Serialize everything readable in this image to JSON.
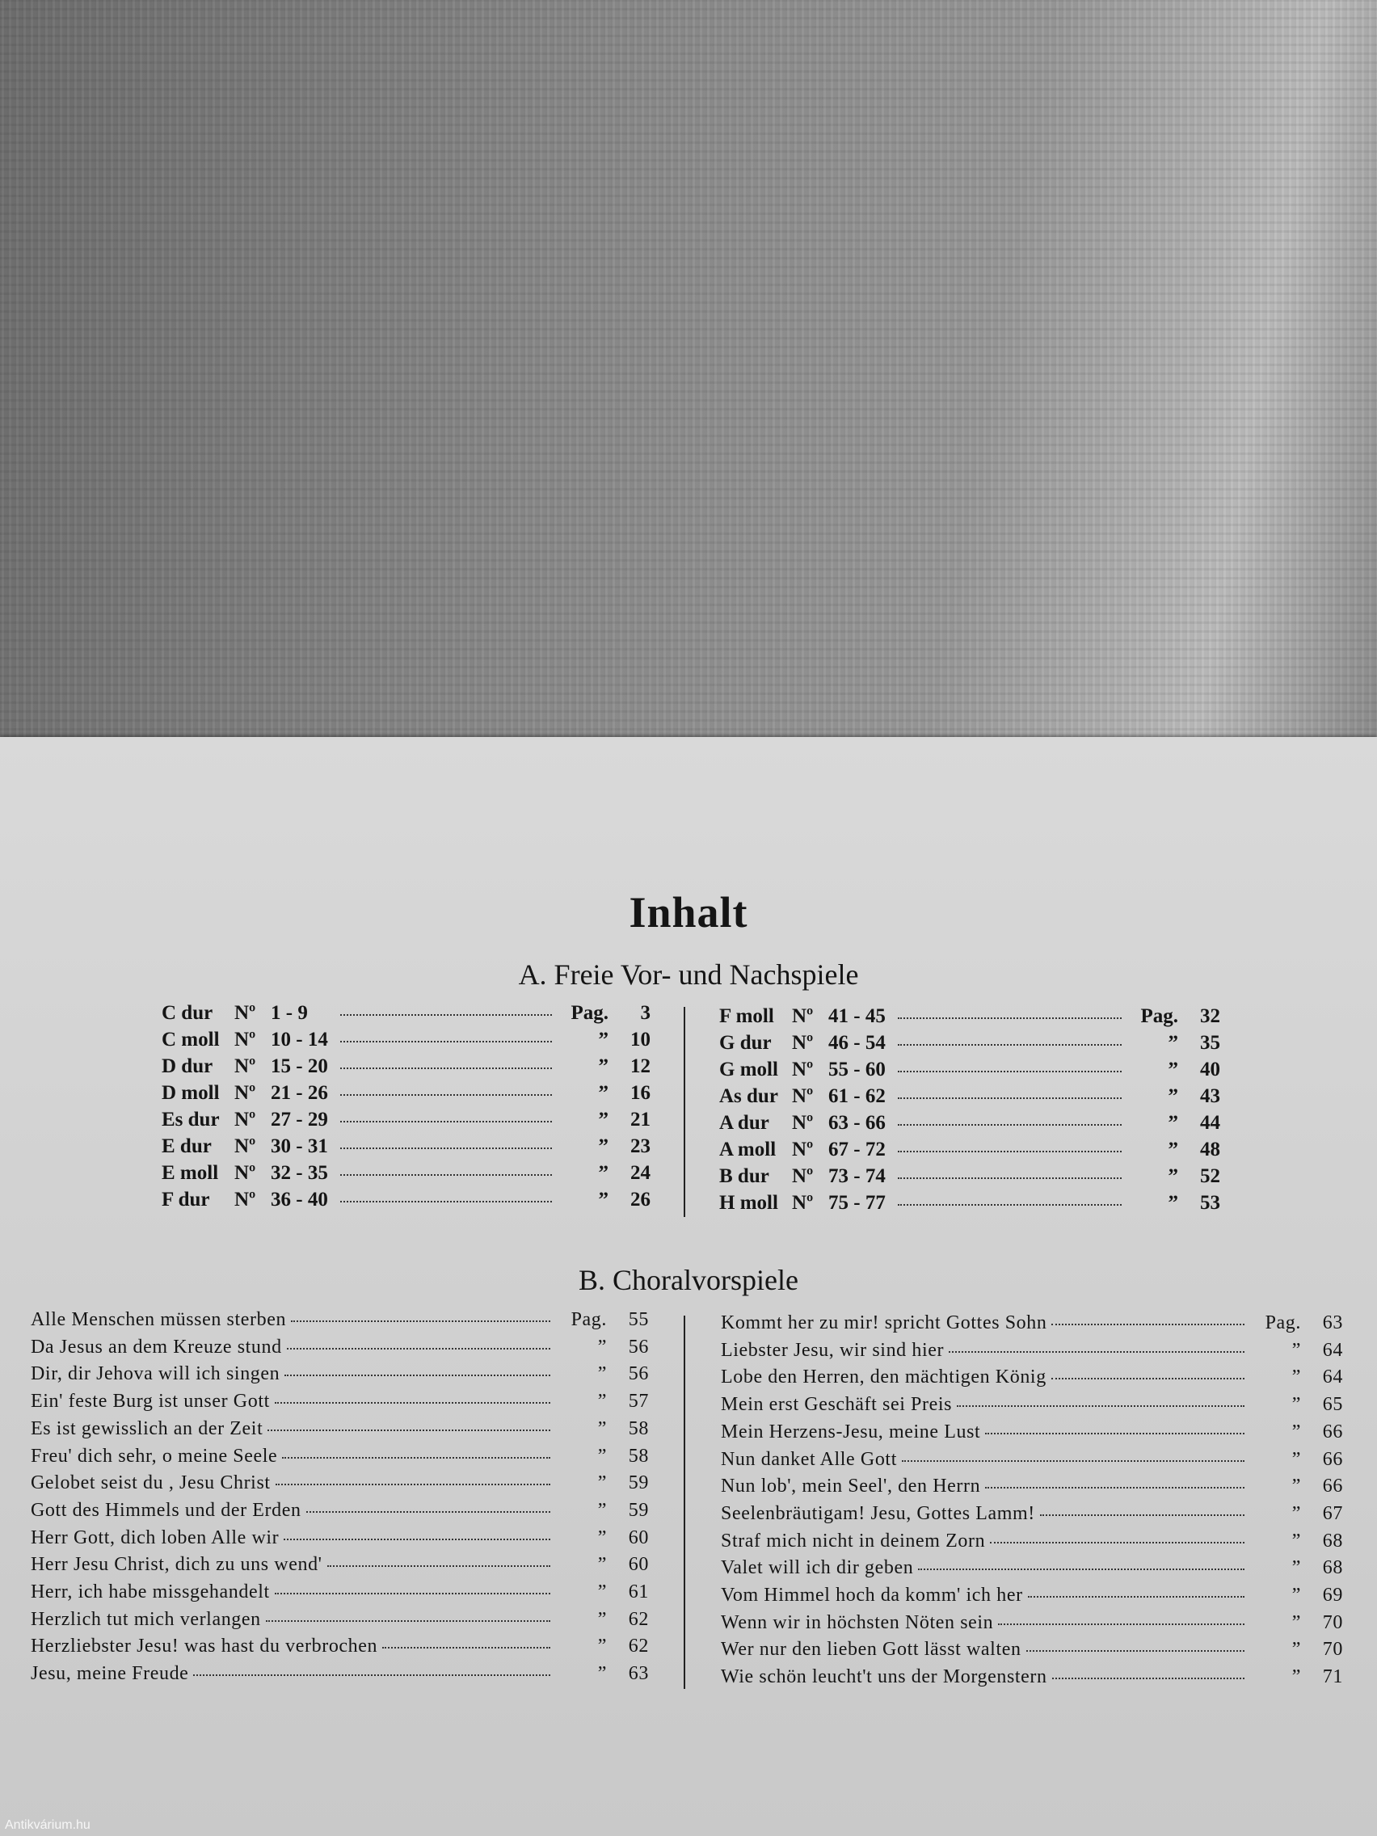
{
  "title": "Inhalt",
  "section_a": {
    "heading": "A. Freie Vor- und Nachspiele",
    "left": [
      {
        "key": "C dur",
        "no": "Nº",
        "range": "1 - 9",
        "pag": "Pag.",
        "page": "3"
      },
      {
        "key": "C moll",
        "no": "Nº",
        "range": "10 - 14",
        "pag": "”",
        "page": "10"
      },
      {
        "key": "D dur",
        "no": "Nº",
        "range": "15 - 20",
        "pag": "”",
        "page": "12"
      },
      {
        "key": "D moll",
        "no": "Nº",
        "range": "21 - 26",
        "pag": "”",
        "page": "16"
      },
      {
        "key": "Es dur",
        "no": "Nº",
        "range": "27 - 29",
        "pag": "”",
        "page": "21"
      },
      {
        "key": "E dur",
        "no": "Nº",
        "range": "30 - 31",
        "pag": "”",
        "page": "23"
      },
      {
        "key": "E moll",
        "no": "Nº",
        "range": "32 - 35",
        "pag": "”",
        "page": "24"
      },
      {
        "key": "F dur",
        "no": "Nº",
        "range": "36 - 40",
        "pag": "”",
        "page": "26"
      }
    ],
    "right": [
      {
        "key": "F moll",
        "no": "Nº",
        "range": "41 - 45",
        "pag": "Pag.",
        "page": "32"
      },
      {
        "key": "G dur",
        "no": "Nº",
        "range": "46 - 54",
        "pag": "”",
        "page": "35"
      },
      {
        "key": "G moll",
        "no": "Nº",
        "range": "55 - 60",
        "pag": "”",
        "page": "40"
      },
      {
        "key": "As dur",
        "no": "Nº",
        "range": "61 - 62",
        "pag": "”",
        "page": "43"
      },
      {
        "key": "A dur",
        "no": "Nº",
        "range": "63 - 66",
        "pag": "”",
        "page": "44"
      },
      {
        "key": "A moll",
        "no": "Nº",
        "range": "67 - 72",
        "pag": "”",
        "page": "48"
      },
      {
        "key": "B dur",
        "no": "Nº",
        "range": "73 - 74",
        "pag": "”",
        "page": "52"
      },
      {
        "key": "H moll",
        "no": "Nº",
        "range": "75 - 77",
        "pag": "”",
        "page": "53"
      }
    ]
  },
  "section_b": {
    "heading": "B. Choralvorspiele",
    "left": [
      {
        "title": "Alle Menschen müssen sterben",
        "pag": "Pag.",
        "page": "55"
      },
      {
        "title": "Da Jesus an dem Kreuze stund",
        "pag": "”",
        "page": "56"
      },
      {
        "title": "Dir, dir Jehova will ich singen",
        "pag": "”",
        "page": "56"
      },
      {
        "title": "Ein' feste Burg ist unser Gott",
        "pag": "”",
        "page": "57"
      },
      {
        "title": "Es ist gewisslich an der Zeit",
        "pag": "”",
        "page": "58"
      },
      {
        "title": "Freu' dich sehr, o meine Seele",
        "pag": "”",
        "page": "58"
      },
      {
        "title": "Gelobet seist du , Jesu Christ",
        "pag": "”",
        "page": "59"
      },
      {
        "title": "Gott des Himmels und der Erden",
        "pag": "”",
        "page": "59"
      },
      {
        "title": "Herr Gott, dich loben Alle wir",
        "pag": "”",
        "page": "60"
      },
      {
        "title": "Herr Jesu Christ, dich zu uns wend'",
        "pag": "”",
        "page": "60"
      },
      {
        "title": "Herr, ich habe missgehandelt",
        "pag": "”",
        "page": "61"
      },
      {
        "title": "Herzlich tut mich verlangen",
        "pag": "”",
        "page": "62"
      },
      {
        "title": "Herzliebster Jesu! was hast du verbrochen",
        "pag": "”",
        "page": "62"
      },
      {
        "title": "Jesu, meine Freude",
        "pag": "”",
        "page": "63"
      }
    ],
    "right": [
      {
        "title": "Kommt her zu mir! spricht Gottes Sohn",
        "pag": "Pag.",
        "page": "63"
      },
      {
        "title": "Liebster Jesu, wir sind hier",
        "pag": "”",
        "page": "64"
      },
      {
        "title": "Lobe den Herren, den mächtigen König",
        "pag": "”",
        "page": "64"
      },
      {
        "title": "Mein erst Geschäft sei Preis",
        "pag": "”",
        "page": "65"
      },
      {
        "title": "Mein Herzens-Jesu, meine Lust",
        "pag": "”",
        "page": "66"
      },
      {
        "title": "Nun danket Alle Gott",
        "pag": "”",
        "page": "66"
      },
      {
        "title": "Nun lob', mein Seel', den Herrn",
        "pag": "”",
        "page": "66"
      },
      {
        "title": "Seelenbräutigam!  Jesu, Gottes Lamm!",
        "pag": "”",
        "page": "67"
      },
      {
        "title": "Straf mich nicht in deinem Zorn",
        "pag": "”",
        "page": "68"
      },
      {
        "title": "Valet will ich dir geben",
        "pag": "”",
        "page": "68"
      },
      {
        "title": "Vom Himmel hoch da komm' ich her",
        "pag": "”",
        "page": "69"
      },
      {
        "title": "Wenn wir in höchsten Nöten sein",
        "pag": "”",
        "page": "70"
      },
      {
        "title": "Wer nur den lieben Gott lässt walten",
        "pag": "”",
        "page": "70"
      },
      {
        "title": "Wie schön leucht't uns der Morgenstern",
        "pag": "”",
        "page": "71"
      }
    ]
  },
  "watermark": "Antikvárium.hu"
}
